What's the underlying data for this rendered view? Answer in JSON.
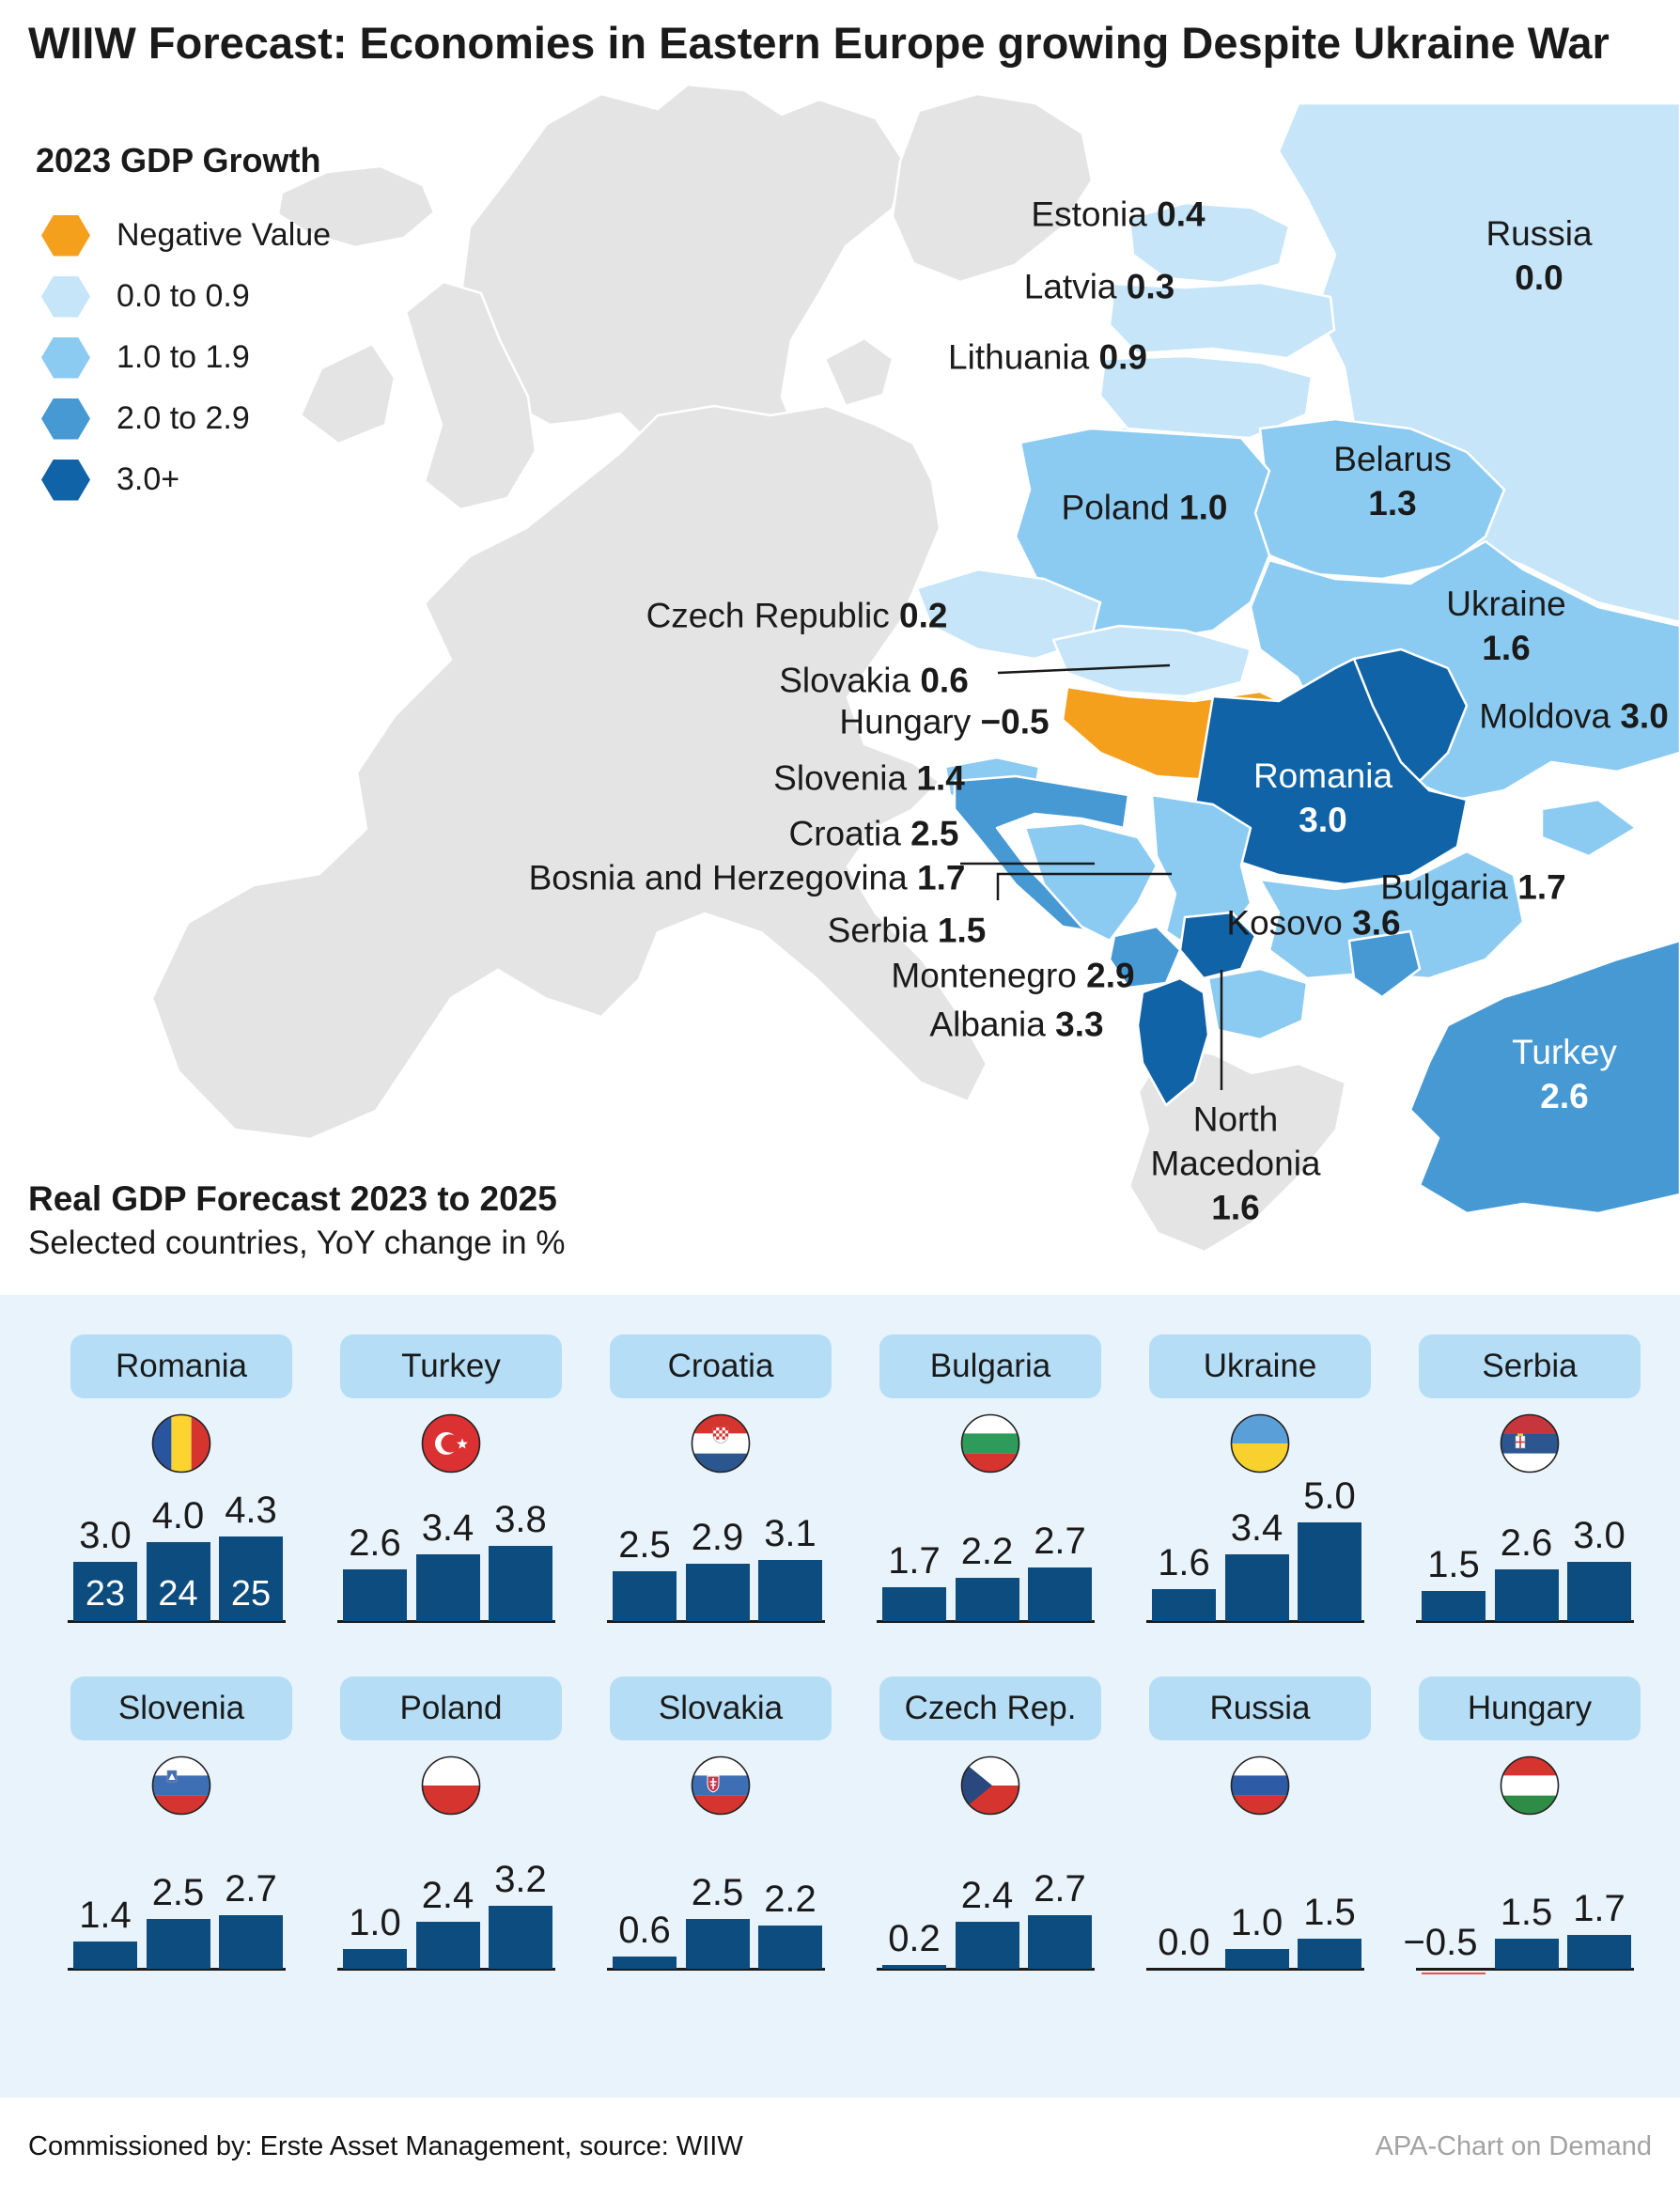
{
  "title": "WIIW Forecast: Economies in Eastern Europe growing Despite Ukraine War",
  "map": {
    "legend": {
      "title": "2023 GDP Growth",
      "items": [
        {
          "label": "Negative Value",
          "color": "#F5A01D"
        },
        {
          "label": "0.0 to 0.9",
          "color": "#C6E5F8"
        },
        {
          "label": "1.0 to 1.9",
          "color": "#8CCBF1"
        },
        {
          "label": "2.0 to 2.9",
          "color": "#4799D4"
        },
        {
          "label": "3.0+",
          "color": "#0F63A6"
        }
      ]
    },
    "labels": [
      {
        "id": "estonia",
        "name": "Estonia",
        "value": "0.4"
      },
      {
        "id": "latvia",
        "name": "Latvia",
        "value": "0.3"
      },
      {
        "id": "lithuania",
        "name": "Lithuania",
        "value": "0.9"
      },
      {
        "id": "russia",
        "name": "Russia",
        "value": "0.0"
      },
      {
        "id": "belarus",
        "name": "Belarus",
        "value": "1.3"
      },
      {
        "id": "poland",
        "name": "Poland",
        "value": "1.0"
      },
      {
        "id": "ukraine",
        "name": "Ukraine",
        "value": "1.6"
      },
      {
        "id": "czech",
        "name": "Czech Republic",
        "value": "0.2"
      },
      {
        "id": "slovakia",
        "name": "Slovakia",
        "value": "0.6"
      },
      {
        "id": "hungary",
        "name": "Hungary",
        "value": "−0.5"
      },
      {
        "id": "moldova",
        "name": "Moldova",
        "value": "3.0"
      },
      {
        "id": "slovenia",
        "name": "Slovenia",
        "value": "1.4"
      },
      {
        "id": "croatia",
        "name": "Croatia",
        "value": "2.5"
      },
      {
        "id": "bosnia",
        "name": "Bosnia and Herzegovina",
        "value": "1.7"
      },
      {
        "id": "serbia",
        "name": "Serbia",
        "value": "1.5"
      },
      {
        "id": "montenegro",
        "name": "Montenegro",
        "value": "2.9"
      },
      {
        "id": "albania",
        "name": "Albania",
        "value": "3.3"
      },
      {
        "id": "kosovo",
        "name": "Kosovo",
        "value": "3.6"
      },
      {
        "id": "bulgaria",
        "name": "Bulgaria",
        "value": "1.7"
      },
      {
        "id": "romania",
        "name": "Romania",
        "value": "3.0"
      },
      {
        "id": "turkey",
        "name": "Turkey",
        "value": "2.6"
      },
      {
        "id": "nmacedonia",
        "name": "North Macedonia",
        "value": "1.6"
      }
    ]
  },
  "forecast": {
    "title": "Real GDP Forecast 2023 to 2025",
    "subtitle": "Selected countries, YoY change in %",
    "years": [
      "23",
      "24",
      "25"
    ],
    "bar_color": "#0C4C7E",
    "negative_bar_color": "#E85340",
    "panel_color": "#E9F3FB",
    "pill_color": "#B5DEF6",
    "countries": [
      {
        "name": "Romania",
        "flag": "flag-romania",
        "values": [
          3.0,
          4.0,
          4.3
        ],
        "show_years": true
      },
      {
        "name": "Turkey",
        "flag": "flag-turkey",
        "values": [
          2.6,
          3.4,
          3.8
        ]
      },
      {
        "name": "Croatia",
        "flag": "flag-croatia",
        "values": [
          2.5,
          2.9,
          3.1
        ]
      },
      {
        "name": "Bulgaria",
        "flag": "flag-bulgaria",
        "values": [
          1.7,
          2.2,
          2.7
        ]
      },
      {
        "name": "Ukraine",
        "flag": "flag-ukraine",
        "values": [
          1.6,
          3.4,
          5.0
        ]
      },
      {
        "name": "Serbia",
        "flag": "flag-serbia",
        "values": [
          1.5,
          2.6,
          3.0
        ]
      },
      {
        "name": "Slovenia",
        "flag": "flag-slovenia",
        "values": [
          1.4,
          2.5,
          2.7
        ]
      },
      {
        "name": "Poland",
        "flag": "flag-poland",
        "values": [
          1.0,
          2.4,
          3.2
        ]
      },
      {
        "name": "Slovakia",
        "flag": "flag-slovakia",
        "values": [
          0.6,
          2.5,
          2.2
        ]
      },
      {
        "name": "Czech Rep.",
        "flag": "flag-czech",
        "values": [
          0.2,
          2.4,
          2.7
        ]
      },
      {
        "name": "Russia",
        "flag": "flag-russia",
        "values": [
          0.0,
          1.0,
          1.5
        ]
      },
      {
        "name": "Hungary",
        "flag": "flag-hungary",
        "values": [
          -0.5,
          1.5,
          1.7
        ]
      }
    ]
  },
  "footer": {
    "left": "Commissioned by: Erste Asset Management, source: WIIW",
    "right": "APA-Chart on Demand"
  },
  "chart_data": [
    {
      "type": "heatmap",
      "subtype": "choropleth-map",
      "title": "2023 GDP Growth",
      "unit": "YoY change in %",
      "legend_classes": [
        "Negative Value",
        "0.0 to 0.9",
        "1.0 to 1.9",
        "2.0 to 2.9",
        "3.0+"
      ],
      "values": {
        "Estonia": 0.4,
        "Latvia": 0.3,
        "Lithuania": 0.9,
        "Russia": 0.0,
        "Belarus": 1.3,
        "Poland": 1.0,
        "Ukraine": 1.6,
        "Czech Republic": 0.2,
        "Slovakia": 0.6,
        "Hungary": -0.5,
        "Moldova": 3.0,
        "Romania": 3.0,
        "Slovenia": 1.4,
        "Croatia": 2.5,
        "Bosnia and Herzegovina": 1.7,
        "Serbia": 1.5,
        "Montenegro": 2.9,
        "Kosovo": 3.6,
        "Albania": 3.3,
        "North Macedonia": 1.6,
        "Bulgaria": 1.7,
        "Turkey": 2.6
      }
    },
    {
      "type": "bar",
      "title": "Real GDP Forecast 2023 to 2025",
      "subtitle": "Selected countries, YoY change in %",
      "categories": [
        "2023",
        "2024",
        "2025"
      ],
      "ylim": [
        -0.5,
        5.0
      ],
      "grid": false,
      "series": [
        {
          "name": "Romania",
          "values": [
            3.0,
            4.0,
            4.3
          ]
        },
        {
          "name": "Turkey",
          "values": [
            2.6,
            3.4,
            3.8
          ]
        },
        {
          "name": "Croatia",
          "values": [
            2.5,
            2.9,
            3.1
          ]
        },
        {
          "name": "Bulgaria",
          "values": [
            1.7,
            2.2,
            2.7
          ]
        },
        {
          "name": "Ukraine",
          "values": [
            1.6,
            3.4,
            5.0
          ]
        },
        {
          "name": "Serbia",
          "values": [
            1.5,
            2.6,
            3.0
          ]
        },
        {
          "name": "Slovenia",
          "values": [
            1.4,
            2.5,
            2.7
          ]
        },
        {
          "name": "Poland",
          "values": [
            1.0,
            2.4,
            3.2
          ]
        },
        {
          "name": "Slovakia",
          "values": [
            0.6,
            2.5,
            2.2
          ]
        },
        {
          "name": "Czech Rep.",
          "values": [
            0.2,
            2.4,
            2.7
          ]
        },
        {
          "name": "Russia",
          "values": [
            0.0,
            1.0,
            1.5
          ]
        },
        {
          "name": "Hungary",
          "values": [
            -0.5,
            1.5,
            1.7
          ]
        }
      ]
    }
  ]
}
